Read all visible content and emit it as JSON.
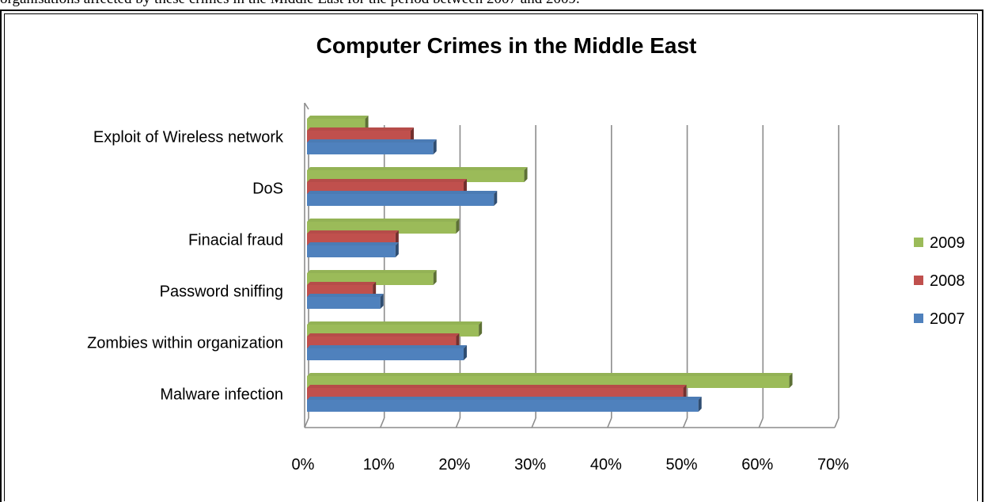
{
  "caption": "organisations affected by these crimes in the Middle East for the period between 2007 and 2009.",
  "chart_data": {
    "type": "bar",
    "orientation": "horizontal",
    "title": "Computer Crimes in the Middle East",
    "categories": [
      "Exploit of Wireless network",
      "DoS",
      "Finacial fraud",
      "Password sniffing",
      "Zombies within organization",
      "Malware infection"
    ],
    "series": [
      {
        "name": "2009",
        "color": "#9bbb59",
        "values": [
          8,
          29,
          20,
          17,
          23,
          64
        ]
      },
      {
        "name": "2008",
        "color": "#c0504d",
        "values": [
          14,
          21,
          12,
          9,
          20,
          50
        ]
      },
      {
        "name": "2007",
        "color": "#4f81bd",
        "values": [
          17,
          25,
          12,
          10,
          21,
          52
        ]
      }
    ],
    "xlim": [
      0,
      70
    ],
    "xticks": [
      "0%",
      "10%",
      "20%",
      "30%",
      "40%",
      "50%",
      "60%",
      "70%"
    ],
    "grid": true,
    "legend": "right"
  }
}
